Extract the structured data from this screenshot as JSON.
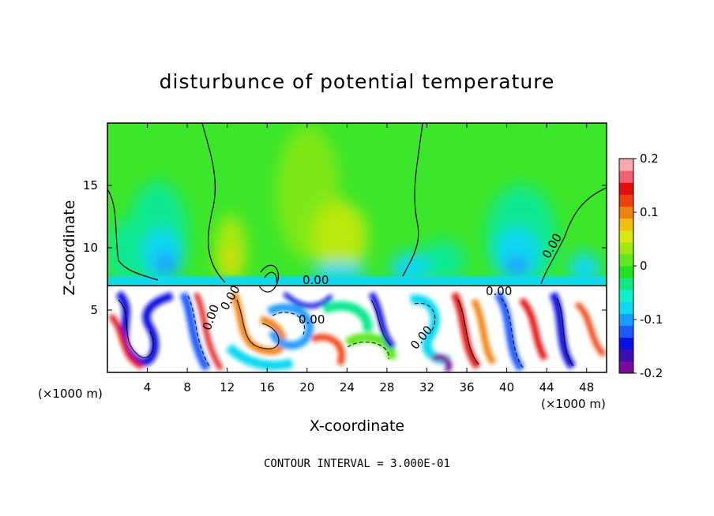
{
  "chart_data": {
    "type": "heatmap",
    "title": "disturbunce of potential temperature",
    "xlabel": "X-coordinate",
    "ylabel": "Z-coordinate",
    "x_unit_label": "(×1000 m)",
    "xlim": [
      0,
      50
    ],
    "ylim": [
      0,
      20
    ],
    "x_ticks": [
      "4",
      "8",
      "12",
      "16",
      "20",
      "24",
      "28",
      "32",
      "36",
      "40",
      "44",
      "48"
    ],
    "y_ticks": [
      "5",
      "10",
      "15"
    ],
    "colorbar": {
      "min": -0.2,
      "max": 0.2,
      "tick_labels": [
        "0.2",
        "0.1",
        "0",
        "-0.1",
        "-0.2"
      ],
      "colors": [
        "#7a0a9a",
        "#3a10b0",
        "#0a10e0",
        "#1a5aff",
        "#1a9bff",
        "#10d8f0",
        "#10f0c8",
        "#10e880",
        "#20e020",
        "#60e820",
        "#a0e810",
        "#d8e810",
        "#f0c010",
        "#f08010",
        "#f04010",
        "#e01010",
        "#f06070",
        "#f8a8b0"
      ]
    },
    "contour_interval_text": "CONTOUR INTERVAL = 3.000E-01",
    "contour_labels": [
      "0.00",
      "0.00",
      "0.00",
      "0.00",
      "0.00",
      "0.00",
      "0.00"
    ]
  }
}
